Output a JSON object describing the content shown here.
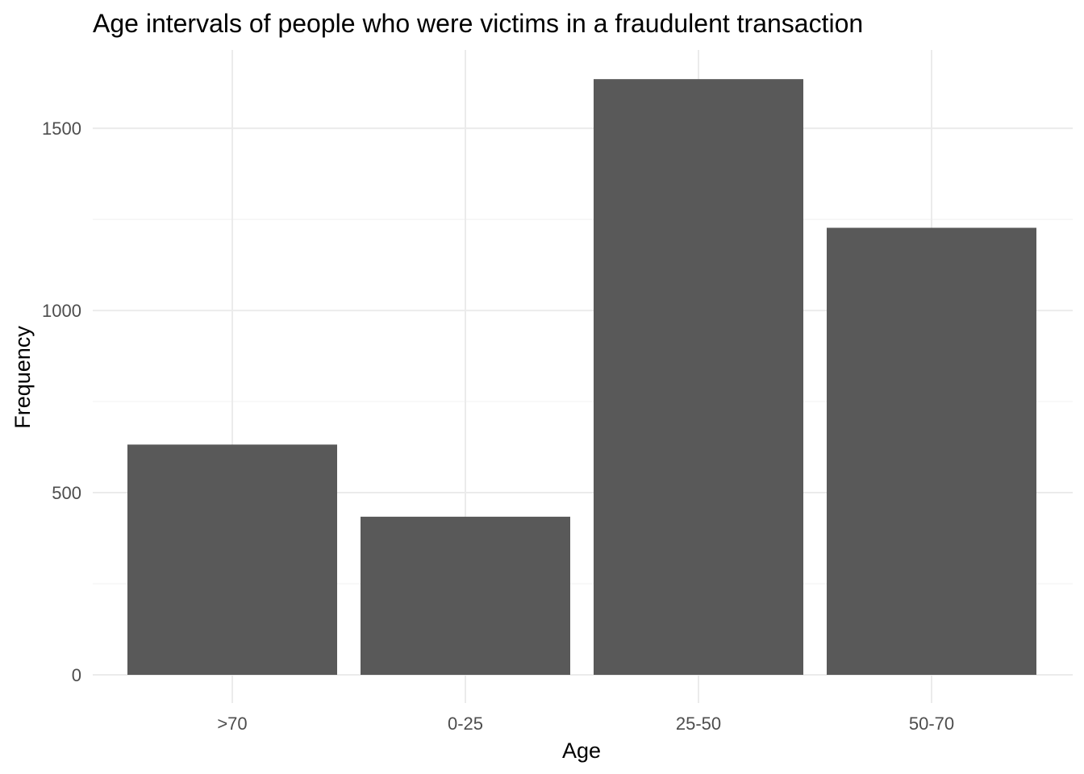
{
  "chart_data": {
    "type": "bar",
    "title": "Age intervals of people who were victims in a fraudulent transaction",
    "xlabel": "Age",
    "ylabel": "Frequency",
    "categories": [
      ">70",
      "0-25",
      "25-50",
      "50-70"
    ],
    "values": [
      632,
      434,
      1635,
      1227
    ],
    "ylim": [
      0,
      1715
    ],
    "yticks": [
      0,
      500,
      1000,
      1500
    ],
    "grid": true,
    "bar_color": "#595959"
  }
}
